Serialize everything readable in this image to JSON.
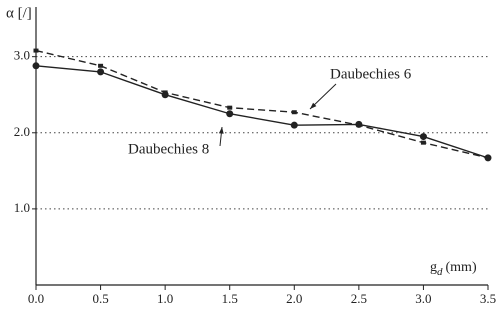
{
  "chart_data": {
    "type": "line",
    "y_label": "α [/]",
    "x_label": "g",
    "x_label_sub": "d",
    "x_label_unit": "(mm)",
    "x": [
      0,
      0.5,
      1,
      1.5,
      2,
      2.5,
      3,
      3.5
    ],
    "series": [
      {
        "name": "Daubechies 8",
        "color": "#222222",
        "style": "solid",
        "marker": "circle",
        "values": [
          2.88,
          2.8,
          2.5,
          2.25,
          2.1,
          2.11,
          1.95,
          1.67
        ]
      },
      {
        "name": "Daubechies 6",
        "color": "#222222",
        "style": "dashed",
        "marker": "square",
        "values": [
          3.08,
          2.88,
          2.53,
          2.33,
          2.27,
          2.1,
          1.87,
          1.67
        ]
      }
    ],
    "xlim": [
      0,
      3.5
    ],
    "xticks": [
      {
        "value": 0,
        "label": "0.0"
      },
      {
        "value": 0.5,
        "label": "0.5"
      },
      {
        "value": 1,
        "label": "1.0"
      },
      {
        "value": 1.5,
        "label": "1.5"
      },
      {
        "value": 2,
        "label": "2.0"
      },
      {
        "value": 2.5,
        "label": "2.5"
      },
      {
        "value": 3,
        "label": "3.0"
      },
      {
        "value": 3.5,
        "label": "3.5"
      }
    ],
    "ylim": [
      0,
      3.6
    ],
    "yticks": [
      {
        "value": 1,
        "label": "1.0"
      },
      {
        "value": 2,
        "label": "2.0"
      },
      {
        "value": 3,
        "label": "3.0"
      }
    ],
    "grid": true
  }
}
